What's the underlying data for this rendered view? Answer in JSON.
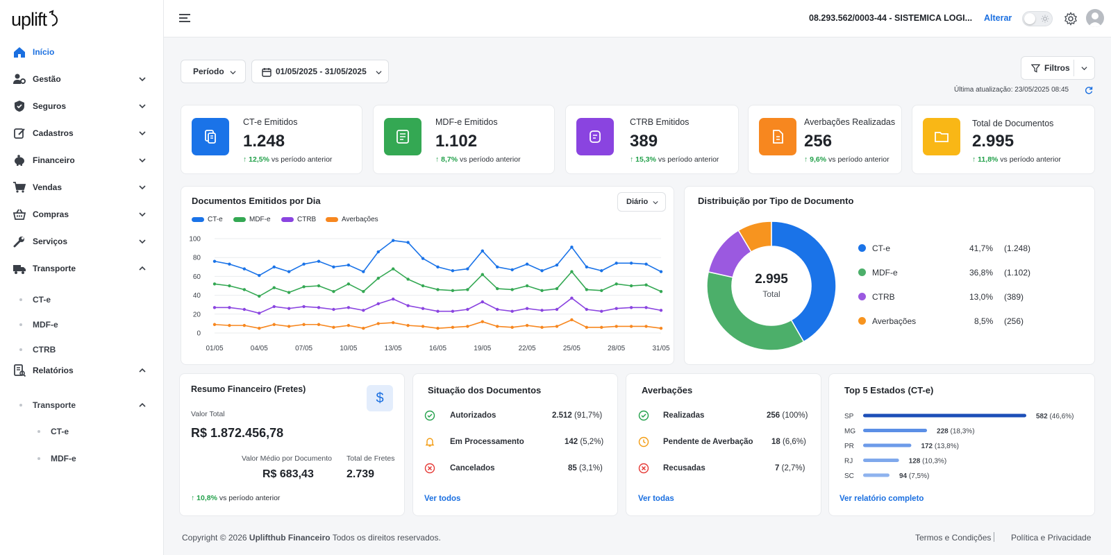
{
  "app": {
    "logo_text": "uplift"
  },
  "sidebar": {
    "items": [
      {
        "label": "Início",
        "icon": "home-icon"
      },
      {
        "label": "Gestão",
        "icon": "users-cog-icon"
      },
      {
        "label": "Seguros",
        "icon": "shield-icon"
      },
      {
        "label": "Cadastros",
        "icon": "edit-icon"
      },
      {
        "label": "Financeiro",
        "icon": "piggy-bank-icon"
      },
      {
        "label": "Vendas",
        "icon": "cart-icon"
      },
      {
        "label": "Compras",
        "icon": "basket-icon"
      },
      {
        "label": "Serviços",
        "icon": "wrench-icon"
      },
      {
        "label": "Transporte",
        "icon": "truck-icon"
      },
      {
        "label": "Relatórios",
        "icon": "report-icon"
      }
    ],
    "transporte_sub": [
      "CT-e",
      "MDF-e",
      "CTRB"
    ],
    "relatorios_sub": {
      "label": "Transporte",
      "items": [
        "CT-e",
        "MDF-e"
      ]
    }
  },
  "header": {
    "company": "08.293.562/0003-44 - SISTEMICA LOGI...",
    "change_label": "Alterar"
  },
  "filters": {
    "period_label": "Período",
    "date_range": "01/05/2025 - 31/05/2025",
    "filters_label": "Filtros",
    "updated": "Última atualização: 23/05/2025 08:45"
  },
  "kpis": [
    {
      "title": "CT-e Emitidos",
      "value": "1.248",
      "delta": "12,5%",
      "delta_text": "vs período anterior",
      "color": "#1a73e8"
    },
    {
      "title": "MDF-e Emitidos",
      "value": "1.102",
      "delta": "8,7%",
      "delta_text": "vs período anterior",
      "color": "#34a853"
    },
    {
      "title": "CTRB Emitidos",
      "value": "389",
      "delta": "15,3%",
      "delta_text": "vs período anterior",
      "color": "#8a44e0"
    },
    {
      "title": "Averbações Realizadas",
      "value": "256",
      "delta": "9,6%",
      "delta_text": "vs período anterior",
      "color": "#f7871f"
    },
    {
      "title": "Total de Documentos",
      "value": "2.995",
      "delta": "11,8%",
      "delta_text": "vs período anterior",
      "color": "#f9b716"
    }
  ],
  "line_card": {
    "title": "Documentos Emitidos por Dia",
    "granularity": "Diário"
  },
  "donut_card": {
    "title": "Distribuição por Tipo de Documento",
    "total": "2.995",
    "total_label": "Total"
  },
  "distribution": [
    {
      "label": "CT-e",
      "pct": "41,7%",
      "count": "(1.248)",
      "color": "#1a73e8"
    },
    {
      "label": "MDF-e",
      "pct": "36,8%",
      "count": "(1.102)",
      "color": "#4caf6a"
    },
    {
      "label": "CTRB",
      "pct": "13,0%",
      "count": "(389)",
      "color": "#9b59e0"
    },
    {
      "label": "Averbações",
      "pct": "8,5%",
      "count": "(256)",
      "color": "#f7941f"
    }
  ],
  "chart_data": [
    {
      "type": "line",
      "title": "Documentos Emitidos por Dia",
      "x": [
        "01/05",
        "02/05",
        "03/05",
        "04/05",
        "05/05",
        "06/05",
        "07/05",
        "08/05",
        "09/05",
        "10/05",
        "11/05",
        "12/05",
        "13/05",
        "14/05",
        "15/05",
        "16/05",
        "17/05",
        "18/05",
        "19/05",
        "20/05",
        "21/05",
        "22/05",
        "23/05",
        "24/05",
        "25/05",
        "26/05",
        "27/05",
        "28/05",
        "29/05",
        "30/05",
        "31/05"
      ],
      "x_ticks": [
        "01/05",
        "04/05",
        "07/05",
        "10/05",
        "13/05",
        "16/05",
        "19/05",
        "22/05",
        "25/05",
        "28/05",
        "31/05"
      ],
      "ylim": [
        0,
        100
      ],
      "y_ticks": [
        0,
        20,
        40,
        60,
        80,
        100
      ],
      "grid": true,
      "legend": "top-left",
      "series": [
        {
          "name": "CT-e",
          "color": "#1a73e8",
          "values": [
            76,
            73,
            68,
            61,
            70,
            65,
            73,
            76,
            70,
            72,
            65,
            86,
            98,
            96,
            79,
            70,
            66,
            68,
            87,
            70,
            67,
            73,
            66,
            72,
            91,
            70,
            66,
            74,
            74,
            73,
            65
          ]
        },
        {
          "name": "MDF-e",
          "color": "#34a853",
          "values": [
            52,
            50,
            46,
            39,
            48,
            43,
            49,
            50,
            44,
            52,
            44,
            58,
            68,
            57,
            50,
            46,
            45,
            46,
            62,
            47,
            46,
            50,
            45,
            47,
            65,
            46,
            45,
            52,
            50,
            51,
            44
          ]
        },
        {
          "name": "CTRB",
          "color": "#8a44e0",
          "values": [
            27,
            27,
            25,
            21,
            28,
            26,
            28,
            27,
            25,
            27,
            24,
            31,
            36,
            29,
            26,
            23,
            23,
            25,
            33,
            25,
            23,
            26,
            24,
            25,
            37,
            25,
            23,
            26,
            27,
            27,
            24
          ]
        },
        {
          "name": "Averbações",
          "color": "#f7871f",
          "values": [
            9,
            8,
            8,
            5,
            9,
            7,
            9,
            9,
            6,
            8,
            5,
            10,
            11,
            8,
            7,
            5,
            6,
            7,
            12,
            7,
            6,
            8,
            6,
            7,
            14,
            6,
            6,
            7,
            7,
            7,
            5
          ]
        }
      ]
    },
    {
      "type": "pie",
      "title": "Distribuição por Tipo de Documento",
      "labels": [
        "CT-e",
        "MDF-e",
        "CTRB",
        "Averbações"
      ],
      "values": [
        1248,
        1102,
        389,
        256
      ],
      "colors": [
        "#1a73e8",
        "#4caf6a",
        "#9b59e0",
        "#f7941f"
      ],
      "center_text": "2.995 Total"
    },
    {
      "type": "bar",
      "title": "Top 5 Estados (CT-e)",
      "categories": [
        "SP",
        "MG",
        "PR",
        "RJ",
        "SC"
      ],
      "values": [
        582,
        228,
        172,
        128,
        94
      ],
      "labels": [
        "(46,6%)",
        "(18,3%)",
        "(13,8%)",
        "(10,3%)",
        "(7,5%)"
      ],
      "xlim": [
        0,
        582
      ]
    }
  ],
  "financeiro": {
    "title": "Resumo Financeiro (Fretes)",
    "total_label": "Valor Total",
    "total": "R$ 1.872.456,78",
    "avg_label": "Valor Médio por Documento",
    "avg": "R$ 683,43",
    "count_label": "Total de Fretes",
    "count": "2.739",
    "delta": "10,8%",
    "delta_text": "vs período anterior",
    "icon_symbol": "$"
  },
  "situacao": {
    "title": "Situação dos Documentos",
    "rows": [
      {
        "label": "Autorizados",
        "value": "2.512",
        "pct": "(91,7%)",
        "icon": "check-circle-icon",
        "color": "#22a04a"
      },
      {
        "label": "Em Processamento",
        "value": "142",
        "pct": "(5,2%)",
        "icon": "bell-icon",
        "color": "#f39c12"
      },
      {
        "label": "Cancelados",
        "value": "85",
        "pct": "(3,1%)",
        "icon": "x-circle-icon",
        "color": "#e53935"
      }
    ],
    "link": "Ver todos"
  },
  "averbacoes": {
    "title": "Averbações",
    "rows": [
      {
        "label": "Realizadas",
        "value": "256",
        "pct": "(100%)",
        "icon": "check-circle-icon",
        "color": "#22a04a"
      },
      {
        "label": "Pendente de Averbação",
        "value": "18",
        "pct": "(6,6%)",
        "icon": "clock-icon",
        "color": "#f39c12"
      },
      {
        "label": "Recusadas",
        "value": "7",
        "pct": "(2,7%)",
        "icon": "x-circle-icon",
        "color": "#e53935"
      }
    ],
    "link": "Ver todas"
  },
  "estados": {
    "title": "Top 5 Estados (CT-e)",
    "link": "Ver relatório completo"
  },
  "footer": {
    "copyright_pre": "Copyright © 2026 ",
    "copyright_brand": "Uplifthub Financeiro",
    "copyright_post": " Todos os direitos reservados.",
    "terms": "Termos e Condições",
    "privacy": "Política e Privacidade"
  }
}
